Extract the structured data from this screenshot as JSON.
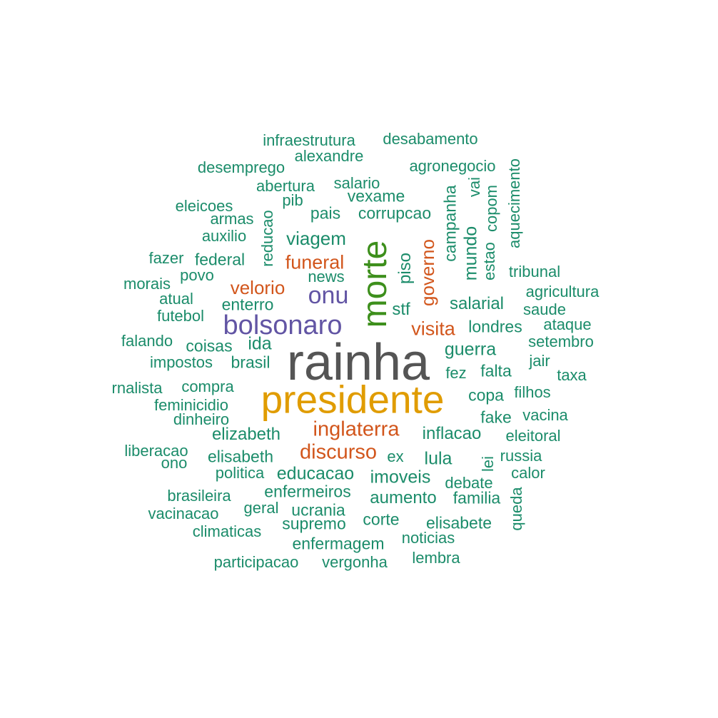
{
  "palette": {
    "grey": "#555555",
    "gold": "#e09c00",
    "green": "#3d8f1c",
    "purple": "#6255a4",
    "orange": "#d2561c",
    "teal": "#1b8c6a"
  },
  "words": {
    "rainha": "rainha",
    "presidente": "presidente",
    "morte": "morte",
    "bolsonaro": "bolsonaro",
    "onu": "onu",
    "inglaterra": "inglaterra",
    "discurso": "discurso",
    "funeral": "funeral",
    "velorio": "velorio",
    "visita": "visita",
    "governo": "governo",
    "infraestrutura": "infraestrutura",
    "desabamento": "desabamento",
    "alexandre": "alexandre",
    "desemprego": "desemprego",
    "agronegocio": "agronegocio",
    "abertura": "abertura",
    "salario": "salario",
    "vexame": "vexame",
    "eleicoes": "eleicoes",
    "pib": "pib",
    "armas": "armas",
    "pais": "pais",
    "corrupcao": "corrupcao",
    "auxilio": "auxilio",
    "viagem": "viagem",
    "fazer": "fazer",
    "federal": "federal",
    "povo": "povo",
    "news": "news",
    "morais": "morais",
    "atual": "atual",
    "enterro": "enterro",
    "futebol": "futebol",
    "stf": "stf",
    "salarial": "salarial",
    "falando": "falando",
    "coisas": "coisas",
    "ida": "ida",
    "impostos": "impostos",
    "brasil": "brasil",
    "jornalista": "rnalista",
    "compra": "compra",
    "feminicidio": "feminicidio",
    "dinheiro": "dinheiro",
    "elizabeth": "elizabeth",
    "liberacao": "liberacao",
    "ono": "ono",
    "elisabeth": "elisabeth",
    "politica": "politica",
    "educacao": "educacao",
    "brasileira": "brasileira",
    "enfermeiros": "enfermeiros",
    "vacinacao": "vacinacao",
    "geral": "geral",
    "ucrania": "ucrania",
    "climaticas": "climaticas",
    "supremo": "supremo",
    "enfermagem": "enfermagem",
    "participacao": "participacao",
    "vergonha": "vergonha",
    "corte": "corte",
    "lembra": "lembra",
    "noticias": "noticias",
    "elisabete": "elisabete",
    "aumento": "aumento",
    "familia": "familia",
    "imoveis": "imoveis",
    "debate": "debate",
    "ex": "ex",
    "lula": "lula",
    "inflacao": "inflacao",
    "eleitoral": "eleitoral",
    "russia": "russia",
    "calor": "calor",
    "fake": "fake",
    "vacina": "vacina",
    "copa": "copa",
    "filhos": "filhos",
    "fez": "fez",
    "falta": "falta",
    "jair": "jair",
    "taxa": "taxa",
    "guerra": "guerra",
    "setembro": "setembro",
    "londres": "londres",
    "ataque": "ataque",
    "saude": "saude",
    "agricultura": "agricultura",
    "tribunal": "tribunal",
    "reducao": "reducao",
    "piso": "piso",
    "campanha": "campanha",
    "mundo": "mundo",
    "estao": "estao",
    "copom": "copom",
    "vai": "vai",
    "aquecimento": "aquecimento",
    "lei": "lei",
    "queda": "queda"
  }
}
